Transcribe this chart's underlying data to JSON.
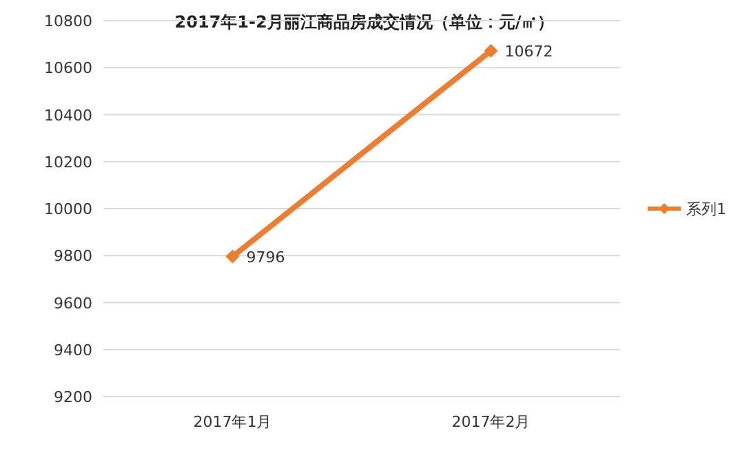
{
  "chart_data": {
    "type": "line",
    "title": "2017年1-2月丽江商品房成交情况（单位：元/㎡）",
    "categories": [
      "2017年1月",
      "2017年2月"
    ],
    "series": [
      {
        "name": "系列1",
        "color": "#ed7d31",
        "values": [
          9796,
          10672
        ]
      }
    ],
    "ylim": [
      9200,
      10800
    ],
    "yticks": [
      9200,
      9400,
      9600,
      9800,
      10000,
      10200,
      10400,
      10600,
      10800
    ],
    "grid": "y",
    "legend": "right",
    "marker": "diamond",
    "line_style": "solid",
    "data_labels": true
  }
}
